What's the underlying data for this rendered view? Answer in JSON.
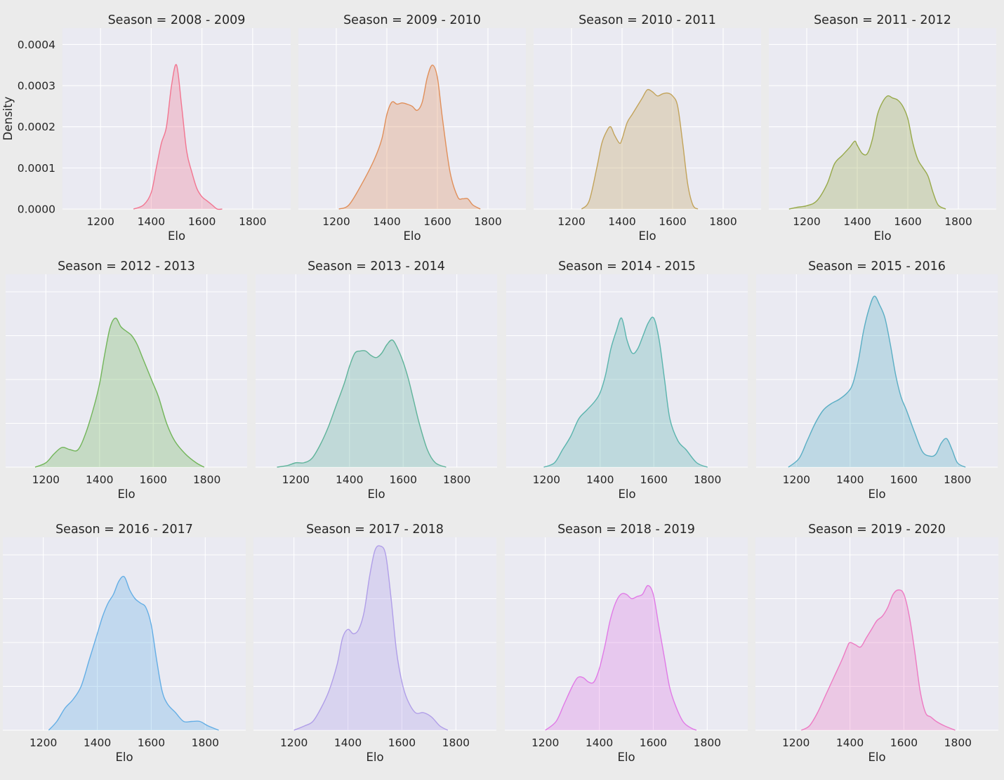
{
  "figure": {
    "colors": {
      "background": "#ebebeb",
      "panel": "#eaeaf2",
      "grid": "#ffffff",
      "text": "#262626"
    }
  },
  "chart_data": [
    {
      "type": "area",
      "title": "Season = 2008 - 2009",
      "xlabel": "Elo",
      "ylabel": "Density",
      "xlim": [
        1050,
        1950
      ],
      "ylim": [
        0,
        0.00044
      ],
      "xticks": [
        1200,
        1400,
        1600,
        1800
      ],
      "xtick_labels": [
        "1200",
        "1400",
        "1600",
        "1800"
      ],
      "yticks": [
        0,
        0.0001,
        0.0002,
        0.0003,
        0.0004
      ],
      "ytick_labels": [
        "0.0000",
        "0.0001",
        "0.0002",
        "0.0003",
        "0.0004"
      ],
      "color": "#f27590",
      "x": [
        1330,
        1370,
        1400,
        1420,
        1440,
        1460,
        1480,
        1500,
        1520,
        1540,
        1560,
        1580,
        1600,
        1620,
        1640,
        1660,
        1680
      ],
      "y": [
        0,
        1e-05,
        4e-05,
        0.0001,
        0.00016,
        0.0002,
        0.0003,
        0.00035,
        0.00025,
        0.00014,
        9e-05,
        5e-05,
        3e-05,
        2e-05,
        1e-05,
        0,
        0
      ]
    },
    {
      "type": "area",
      "title": "Season = 2009 - 2010",
      "xlabel": "Elo",
      "xlim": [
        1050,
        1950
      ],
      "ylim": [
        0,
        0.00044
      ],
      "xticks": [
        1200,
        1400,
        1600,
        1800
      ],
      "xtick_labels": [
        "1200",
        "1400",
        "1600",
        "1800"
      ],
      "color": "#e08f5a",
      "x": [
        1210,
        1250,
        1300,
        1350,
        1380,
        1400,
        1420,
        1440,
        1460,
        1480,
        1500,
        1520,
        1540,
        1560,
        1580,
        1600,
        1620,
        1650,
        1680,
        1700,
        1720,
        1740,
        1770
      ],
      "y": [
        0,
        1e-05,
        6e-05,
        0.00012,
        0.00017,
        0.00023,
        0.00026,
        0.000255,
        0.000258,
        0.000255,
        0.00025,
        0.00024,
        0.00026,
        0.00032,
        0.00035,
        0.00032,
        0.00022,
        9e-05,
        3e-05,
        2.5e-05,
        2.5e-05,
        1e-05,
        0
      ]
    },
    {
      "type": "area",
      "title": "Season = 2010 - 2011",
      "xlabel": "Elo",
      "xlim": [
        1050,
        1950
      ],
      "ylim": [
        0,
        0.00044
      ],
      "xticks": [
        1200,
        1400,
        1600,
        1800
      ],
      "xtick_labels": [
        "1200",
        "1400",
        "1600",
        "1800"
      ],
      "color": "#c2a35a",
      "x": [
        1240,
        1270,
        1300,
        1320,
        1340,
        1355,
        1370,
        1390,
        1400,
        1420,
        1440,
        1460,
        1480,
        1500,
        1520,
        1540,
        1560,
        1580,
        1600,
        1620,
        1640,
        1660,
        1680,
        1700
      ],
      "y": [
        0,
        2e-05,
        0.0001,
        0.00016,
        0.00019,
        0.0002,
        0.00018,
        0.00016,
        0.00017,
        0.00021,
        0.00023,
        0.00025,
        0.00027,
        0.00029,
        0.000285,
        0.000275,
        0.00028,
        0.000282,
        0.000275,
        0.00025,
        0.00016,
        6e-05,
        1e-05,
        0
      ]
    },
    {
      "type": "area",
      "title": "Season = 2011 - 2012",
      "xlabel": "Elo",
      "xlim": [
        1050,
        1950
      ],
      "ylim": [
        0,
        0.00044
      ],
      "xticks": [
        1200,
        1400,
        1600,
        1800
      ],
      "xtick_labels": [
        "1200",
        "1400",
        "1600",
        "1800"
      ],
      "color": "#97a94a",
      "x": [
        1130,
        1160,
        1200,
        1240,
        1280,
        1310,
        1340,
        1370,
        1390,
        1400,
        1420,
        1440,
        1460,
        1480,
        1500,
        1520,
        1540,
        1560,
        1580,
        1600,
        1620,
        1640,
        1660,
        1680,
        1700,
        1720,
        1750
      ],
      "y": [
        0,
        4e-06,
        8e-06,
        2e-05,
        6e-05,
        0.00011,
        0.00013,
        0.00015,
        0.000165,
        0.000155,
        0.000135,
        0.000135,
        0.00017,
        0.00023,
        0.00026,
        0.000275,
        0.00027,
        0.000265,
        0.00025,
        0.00022,
        0.00016,
        0.00012,
        0.0001,
        8e-05,
        4e-05,
        1e-05,
        0
      ]
    },
    {
      "type": "area",
      "title": "Season = 2012 - 2013",
      "xlabel": "Elo",
      "xlim": [
        1050,
        1950
      ],
      "ylim": [
        0,
        0.00044
      ],
      "xticks": [
        1200,
        1400,
        1600,
        1800
      ],
      "xtick_labels": [
        "1200",
        "1400",
        "1600",
        "1800"
      ],
      "color": "#72b55a",
      "x": [
        1160,
        1200,
        1230,
        1260,
        1290,
        1320,
        1350,
        1380,
        1400,
        1420,
        1440,
        1460,
        1480,
        1500,
        1520,
        1540,
        1560,
        1580,
        1600,
        1620,
        1650,
        1680,
        1720,
        1760,
        1790
      ],
      "y": [
        0,
        1e-05,
        3e-05,
        4.5e-05,
        4e-05,
        4e-05,
        8e-05,
        0.00014,
        0.00019,
        0.00026,
        0.00032,
        0.00034,
        0.00032,
        0.00031,
        0.0003,
        0.00028,
        0.00025,
        0.00022,
        0.00019,
        0.00016,
        0.0001,
        6e-05,
        3e-05,
        1e-05,
        0
      ]
    },
    {
      "type": "area",
      "title": "Season = 2013 - 2014",
      "xlabel": "Elo",
      "xlim": [
        1050,
        1950
      ],
      "ylim": [
        0,
        0.00044
      ],
      "xticks": [
        1200,
        1400,
        1600,
        1800
      ],
      "xtick_labels": [
        "1200",
        "1400",
        "1600",
        "1800"
      ],
      "color": "#5fb39a",
      "x": [
        1130,
        1170,
        1200,
        1230,
        1260,
        1290,
        1320,
        1350,
        1380,
        1400,
        1420,
        1440,
        1460,
        1480,
        1500,
        1520,
        1540,
        1560,
        1580,
        1600,
        1620,
        1640,
        1660,
        1690,
        1720,
        1760
      ],
      "y": [
        0,
        4e-06,
        1e-05,
        1e-05,
        2e-05,
        5e-05,
        9e-05,
        0.00014,
        0.00019,
        0.00023,
        0.00026,
        0.000265,
        0.000265,
        0.000255,
        0.00025,
        0.00026,
        0.00028,
        0.00029,
        0.00027,
        0.00024,
        0.0002,
        0.00015,
        0.0001,
        4e-05,
        1e-05,
        0
      ]
    },
    {
      "type": "area",
      "title": "Season = 2014 - 2015",
      "xlabel": "Elo",
      "xlim": [
        1050,
        1950
      ],
      "ylim": [
        0,
        0.00044
      ],
      "xticks": [
        1200,
        1400,
        1600,
        1800
      ],
      "xtick_labels": [
        "1200",
        "1400",
        "1600",
        "1800"
      ],
      "color": "#5ab4ad",
      "x": [
        1190,
        1230,
        1260,
        1290,
        1320,
        1350,
        1380,
        1400,
        1420,
        1440,
        1460,
        1480,
        1500,
        1520,
        1540,
        1560,
        1580,
        1600,
        1620,
        1640,
        1660,
        1690,
        1720,
        1760,
        1800
      ],
      "y": [
        0,
        1e-05,
        4e-05,
        7e-05,
        0.00011,
        0.00013,
        0.00015,
        0.00017,
        0.00021,
        0.00027,
        0.00031,
        0.00034,
        0.00029,
        0.00026,
        0.00027,
        0.0003,
        0.00033,
        0.00034,
        0.00029,
        0.0002,
        0.00011,
        6e-05,
        4e-05,
        1e-05,
        0
      ]
    },
    {
      "type": "area",
      "title": "Season = 2015 - 2016",
      "xlabel": "Elo",
      "xlim": [
        1050,
        1950
      ],
      "ylim": [
        0,
        0.00044
      ],
      "xticks": [
        1200,
        1400,
        1600,
        1800
      ],
      "xtick_labels": [
        "1200",
        "1400",
        "1600",
        "1800"
      ],
      "color": "#5aaec4",
      "x": [
        1170,
        1210,
        1240,
        1270,
        1300,
        1330,
        1360,
        1390,
        1410,
        1430,
        1450,
        1470,
        1490,
        1510,
        1530,
        1550,
        1570,
        1590,
        1610,
        1640,
        1670,
        1700,
        1720,
        1740,
        1760,
        1780,
        1800,
        1830
      ],
      "y": [
        0,
        2e-05,
        6e-05,
        0.0001,
        0.00013,
        0.000145,
        0.000155,
        0.00017,
        0.00019,
        0.00024,
        0.00031,
        0.00036,
        0.00039,
        0.00037,
        0.00034,
        0.00028,
        0.00021,
        0.00016,
        0.00013,
        8e-05,
        3.5e-05,
        2.5e-05,
        3e-05,
        5.5e-05,
        6.5e-05,
        4e-05,
        1e-05,
        0
      ]
    },
    {
      "type": "area",
      "title": "Season = 2016 - 2017",
      "xlabel": "Elo",
      "xlim": [
        1050,
        1950
      ],
      "ylim": [
        0,
        0.00044
      ],
      "xticks": [
        1200,
        1400,
        1600,
        1800
      ],
      "xtick_labels": [
        "1200",
        "1400",
        "1600",
        "1800"
      ],
      "color": "#64aee5",
      "x": [
        1220,
        1250,
        1280,
        1310,
        1340,
        1370,
        1400,
        1420,
        1440,
        1460,
        1480,
        1500,
        1520,
        1540,
        1560,
        1580,
        1600,
        1620,
        1640,
        1660,
        1690,
        1720,
        1750,
        1780,
        1810,
        1850
      ],
      "y": [
        0,
        2e-05,
        5e-05,
        7e-05,
        0.0001,
        0.00016,
        0.00022,
        0.00026,
        0.00029,
        0.00031,
        0.00034,
        0.00035,
        0.00032,
        0.0003,
        0.00029,
        0.00028,
        0.00024,
        0.00016,
        9e-05,
        6e-05,
        4e-05,
        2e-05,
        2e-05,
        2e-05,
        1e-05,
        0
      ]
    },
    {
      "type": "area",
      "title": "Season = 2017 - 2018",
      "xlabel": "Elo",
      "xlim": [
        1050,
        1950
      ],
      "ylim": [
        0,
        0.00044
      ],
      "xticks": [
        1200,
        1400,
        1600,
        1800
      ],
      "xtick_labels": [
        "1200",
        "1400",
        "1600",
        "1800"
      ],
      "color": "#b09ee8",
      "x": [
        1200,
        1240,
        1270,
        1300,
        1330,
        1360,
        1380,
        1400,
        1420,
        1440,
        1460,
        1480,
        1500,
        1520,
        1540,
        1560,
        1580,
        1600,
        1620,
        1650,
        1680,
        1710,
        1740,
        1770
      ],
      "y": [
        0,
        1e-05,
        2e-05,
        5e-05,
        9e-05,
        0.00015,
        0.00021,
        0.00023,
        0.00022,
        0.00023,
        0.00027,
        0.00035,
        0.00041,
        0.00042,
        0.0004,
        0.0003,
        0.00018,
        0.00011,
        7e-05,
        4e-05,
        4e-05,
        3e-05,
        1e-05,
        0
      ]
    },
    {
      "type": "area",
      "title": "Season = 2018 - 2019",
      "xlabel": "Elo",
      "xlim": [
        1050,
        1950
      ],
      "ylim": [
        0,
        0.00044
      ],
      "xticks": [
        1200,
        1400,
        1600,
        1800
      ],
      "xtick_labels": [
        "1200",
        "1400",
        "1600",
        "1800"
      ],
      "color": "#e07ae6",
      "x": [
        1200,
        1240,
        1270,
        1300,
        1320,
        1340,
        1360,
        1380,
        1400,
        1420,
        1440,
        1460,
        1480,
        1500,
        1520,
        1540,
        1560,
        1580,
        1600,
        1620,
        1640,
        1660,
        1680,
        1710,
        1740,
        1760
      ],
      "y": [
        0,
        2e-05,
        6e-05,
        0.0001,
        0.00012,
        0.00012,
        0.00011,
        0.00011,
        0.00014,
        0.00019,
        0.00025,
        0.00029,
        0.00031,
        0.00031,
        0.0003,
        0.000305,
        0.00031,
        0.00033,
        0.00031,
        0.00024,
        0.00017,
        0.0001,
        6e-05,
        2e-05,
        5e-06,
        0
      ]
    },
    {
      "type": "area",
      "title": "Season = 2019 - 2020",
      "xlabel": "Elo",
      "xlim": [
        1050,
        1950
      ],
      "ylim": [
        0,
        0.00044
      ],
      "xticks": [
        1200,
        1400,
        1600,
        1800
      ],
      "xtick_labels": [
        "1200",
        "1400",
        "1600",
        "1800"
      ],
      "color": "#ed7ac2",
      "x": [
        1220,
        1250,
        1280,
        1310,
        1340,
        1370,
        1390,
        1400,
        1420,
        1440,
        1460,
        1480,
        1500,
        1520,
        1540,
        1560,
        1580,
        1600,
        1620,
        1640,
        1660,
        1680,
        1700,
        1720,
        1750,
        1790
      ],
      "y": [
        0,
        1e-05,
        4e-05,
        8e-05,
        0.00012,
        0.00016,
        0.00019,
        0.0002,
        0.000195,
        0.00019,
        0.00021,
        0.00023,
        0.00025,
        0.00026,
        0.00028,
        0.00031,
        0.00032,
        0.00031,
        0.00026,
        0.00018,
        9e-05,
        4e-05,
        3e-05,
        2e-05,
        1e-05,
        0
      ]
    }
  ]
}
